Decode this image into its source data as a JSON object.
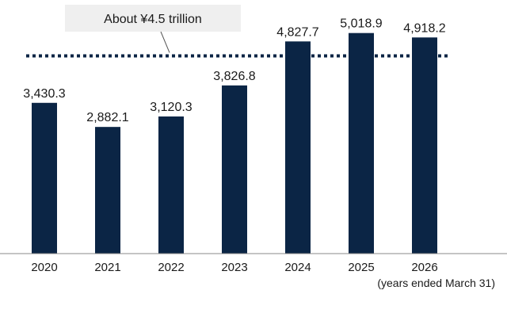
{
  "chart_data": {
    "type": "bar",
    "categories": [
      "2020",
      "2021",
      "2022",
      "2023",
      "2024",
      "2025",
      "2026"
    ],
    "values": [
      3430.3,
      2882.1,
      3120.3,
      3826.8,
      4827.7,
      5018.9,
      4918.2
    ],
    "value_labels": [
      "3,430.3",
      "2,882.1",
      "3,120.3",
      "3,826.8",
      "4,827.7",
      "5,018.9",
      "4,918.2"
    ],
    "ylim": [
      0,
      5500
    ],
    "grid": false,
    "reference_line": {
      "value": 4500,
      "style": "dotted",
      "label": "About ¥4.5 trillion"
    },
    "x_note": "(years ended March 31)"
  },
  "colors": {
    "bar": "#0b2545",
    "reference_line": "#0b2545",
    "axis": "#888888",
    "annotation_box": "#efefef",
    "text": "#1a1a1a"
  }
}
